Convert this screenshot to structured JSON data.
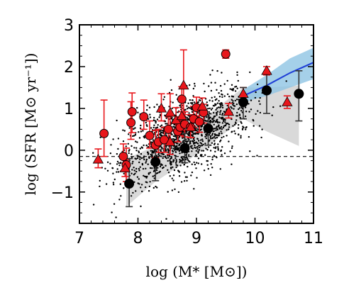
{
  "chart_data": {
    "type": "scatter",
    "xlabel": "log (M* [M⊙])",
    "ylabel": "log (SFR [M⊙ yr⁻¹])",
    "xlim": [
      7,
      11
    ],
    "ylim": [
      -1.75,
      3
    ],
    "xticks": [
      "7",
      "8",
      "9",
      "10",
      "11"
    ],
    "yticks": [
      "−1",
      "0",
      "1",
      "2",
      "3"
    ],
    "xtick_values": [
      7,
      8,
      9,
      10,
      11
    ],
    "ytick_values": [
      -1,
      0,
      1,
      2,
      3
    ],
    "grid": false,
    "colors": {
      "background_points": "#000000",
      "red_markers": "#e8161b",
      "red_errorbars": "#e8161b",
      "black_markers": "#000000",
      "gray_band": "#cccccc",
      "blue_line": "#1f3fd6",
      "blue_band": "#8fc4e3",
      "reference_line": "#000000"
    },
    "reference_line_y": -0.15,
    "background_scatter": {
      "center_slope": 0.55,
      "center_intercept_at_9": 0.45,
      "scatter_sigma": 0.45,
      "n_points": 1400
    },
    "gray_band": {
      "x": [
        7.8,
        8.3,
        8.8,
        9.2,
        9.8,
        10.2,
        10.75
      ],
      "lower": [
        -1.35,
        -0.75,
        -0.3,
        0.1,
        0.75,
        0.45,
        0.1
      ],
      "upper": [
        -0.2,
        0.1,
        0.4,
        0.85,
        1.5,
        1.5,
        1.55
      ]
    },
    "blue_fit": {
      "x": [
        9.8,
        10.2,
        10.6,
        11.0
      ],
      "y": [
        1.3,
        1.55,
        1.85,
        2.1
      ],
      "band_lower": [
        1.15,
        1.3,
        1.5,
        1.7
      ],
      "band_upper": [
        1.45,
        1.8,
        2.2,
        2.45
      ]
    },
    "series": [
      {
        "marker": "circle",
        "color": "#e8161b",
        "points": [
          {
            "x": 7.42,
            "y": 0.4,
            "yerr_low": 0.55,
            "yerr_high": 0.8
          },
          {
            "x": 7.75,
            "y": -0.15,
            "yerr_low": 0.35,
            "yerr_high": 0.3
          },
          {
            "x": 7.8,
            "y": -0.35,
            "yerr_low": 0.4,
            "yerr_high": 0.4
          },
          {
            "x": 7.9,
            "y": 0.92,
            "yerr_low": 0.5,
            "yerr_high": 0.45
          },
          {
            "x": 7.88,
            "y": 0.66,
            "yerr_low": 0.4,
            "yerr_high": 0.5
          },
          {
            "x": 8.1,
            "y": 0.8,
            "yerr_low": 0.3,
            "yerr_high": 0.4
          },
          {
            "x": 8.2,
            "y": 0.35,
            "yerr_low": 0.3,
            "yerr_high": 0.35
          },
          {
            "x": 8.3,
            "y": 0.12,
            "yerr_low": 0.3,
            "yerr_high": 0.35
          },
          {
            "x": 8.35,
            "y": 0.2,
            "yerr_low": 0.25,
            "yerr_high": 0.3
          },
          {
            "x": 8.45,
            "y": 0.25,
            "yerr_low": 0.3,
            "yerr_high": 0.3
          },
          {
            "x": 8.52,
            "y": 0.5,
            "yerr_low": 0.25,
            "yerr_high": 0.3
          },
          {
            "x": 8.68,
            "y": 0.45,
            "yerr_low": 0.25,
            "yerr_high": 0.2
          },
          {
            "x": 8.72,
            "y": 0.55,
            "yerr_low": 0.2,
            "yerr_high": 0.25
          },
          {
            "x": 8.8,
            "y": 0.62,
            "yerr_low": 0.3,
            "yerr_high": 0.3
          },
          {
            "x": 8.75,
            "y": 1.22,
            "yerr_low": 0.3,
            "yerr_high": 0.3
          },
          {
            "x": 8.9,
            "y": 0.55,
            "yerr_low": 0.25,
            "yerr_high": 0.3
          },
          {
            "x": 8.95,
            "y": 0.75,
            "yerr_low": 0.2,
            "yerr_high": 0.3
          },
          {
            "x": 9.0,
            "y": 1.02,
            "yerr_low": 0.2,
            "yerr_high": 0.25
          },
          {
            "x": 9.05,
            "y": 0.68,
            "yerr_low": 0.25,
            "yerr_high": 0.25
          },
          {
            "x": 9.12,
            "y": 0.9,
            "yerr_low": 0.25,
            "yerr_high": 0.2
          },
          {
            "x": 9.5,
            "y": 2.3,
            "yerr_low": 0.1,
            "yerr_high": 0.1
          }
        ]
      },
      {
        "marker": "triangle",
        "color": "#e8161b",
        "points": [
          {
            "x": 7.32,
            "y": -0.22,
            "yerr_low": 0.2,
            "yerr_high": 0.25
          },
          {
            "x": 7.78,
            "y": -0.43,
            "yerr_low": 0.2,
            "yerr_high": 0.2
          },
          {
            "x": 8.4,
            "y": 1.0,
            "yerr_low": 0.3,
            "yerr_high": 0.35
          },
          {
            "x": 8.55,
            "y": 0.9,
            "yerr_low": 0.4,
            "yerr_high": 0.45
          },
          {
            "x": 8.55,
            "y": 0.2,
            "yerr_low": 0.3,
            "yerr_high": 0.3
          },
          {
            "x": 8.65,
            "y": 0.72,
            "yerr_low": 0.25,
            "yerr_high": 0.3
          },
          {
            "x": 8.75,
            "y": 0.82,
            "yerr_low": 0.35,
            "yerr_high": 0.35
          },
          {
            "x": 8.78,
            "y": 1.55,
            "yerr_low": 0.7,
            "yerr_high": 0.85
          },
          {
            "x": 8.9,
            "y": 0.55,
            "yerr_low": 0.25,
            "yerr_high": 0.3
          },
          {
            "x": 9.1,
            "y": 1.05,
            "yerr_low": 0.2,
            "yerr_high": 0.2
          },
          {
            "x": 9.55,
            "y": 0.92,
            "yerr_low": 0.15,
            "yerr_high": 0.2
          },
          {
            "x": 9.8,
            "y": 1.35,
            "yerr_low": 0.15,
            "yerr_high": 0.15
          },
          {
            "x": 10.2,
            "y": 1.9,
            "yerr_low": 0.1,
            "yerr_high": 0.1
          },
          {
            "x": 10.55,
            "y": 1.15,
            "yerr_low": 0.15,
            "yerr_high": 0.15
          }
        ]
      },
      {
        "marker": "circle",
        "color": "#000000",
        "points": [
          {
            "x": 7.85,
            "y": -0.8,
            "yerr_low": 0.55,
            "yerr_high": 0.6
          },
          {
            "x": 8.3,
            "y": -0.28,
            "yerr_low": 0.45,
            "yerr_high": 0.4
          },
          {
            "x": 8.8,
            "y": 0.05,
            "yerr_low": 0.35,
            "yerr_high": 0.35
          },
          {
            "x": 9.2,
            "y": 0.52,
            "yerr_low": 0.4,
            "yerr_high": 0.35
          },
          {
            "x": 9.8,
            "y": 1.15,
            "yerr_low": 0.4,
            "yerr_high": 0.35
          },
          {
            "x": 10.2,
            "y": 1.43,
            "yerr_low": 0.55,
            "yerr_high": 0.45
          },
          {
            "x": 10.75,
            "y": 1.35,
            "yerr_low": 0.65,
            "yerr_high": 0.55
          }
        ]
      }
    ]
  }
}
